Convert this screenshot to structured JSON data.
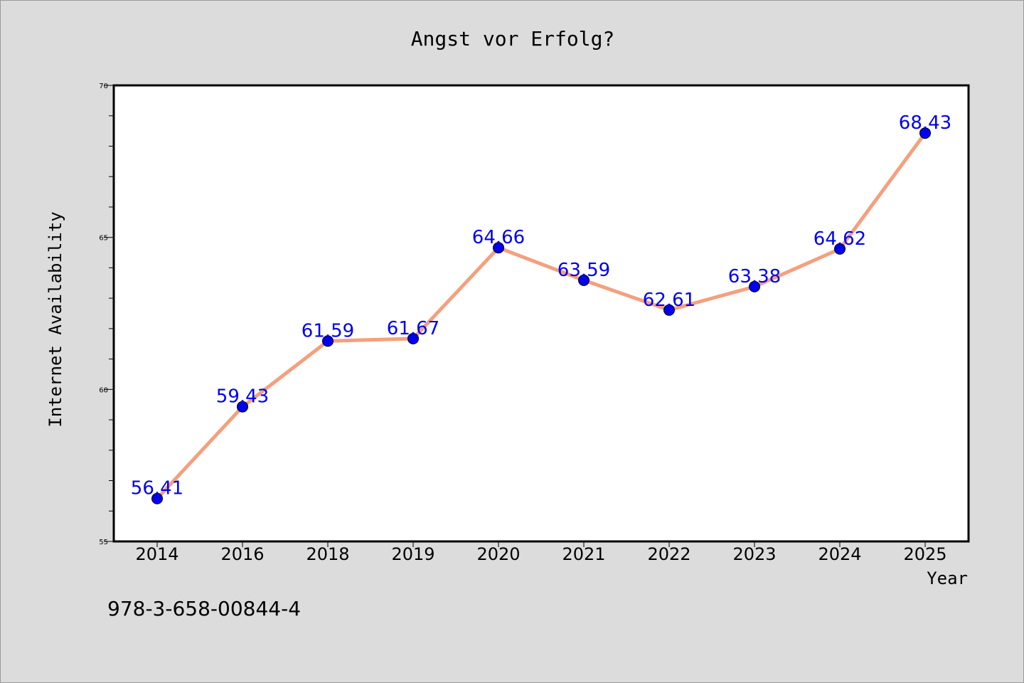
{
  "chart_data": {
    "type": "line",
    "title": "Angst vor Erfolg?",
    "xlabel": "Year",
    "ylabel": "Internet Availability",
    "categories": [
      "2014",
      "2016",
      "2018",
      "2019",
      "2020",
      "2021",
      "2022",
      "2023",
      "2024",
      "2025"
    ],
    "series": [
      {
        "values": [
          56.41,
          59.43,
          61.59,
          61.67,
          64.66,
          63.59,
          62.61,
          63.38,
          64.62,
          68.43
        ],
        "data_labels": [
          "56.41",
          "59.43",
          "61.59",
          "61.67",
          "64.66",
          "63.59",
          "62.61",
          "63.38",
          "64.62",
          "68.43"
        ],
        "line_color": "#f4a07e",
        "marker_color": "#0000ee"
      }
    ],
    "ylim": [
      55,
      70
    ],
    "yticks": [
      "55",
      "60",
      "65",
      "70"
    ],
    "grid": false,
    "legend": "none",
    "label_color": "#0000ee"
  },
  "footer": {
    "isbn": "978-3-658-00844-4"
  }
}
